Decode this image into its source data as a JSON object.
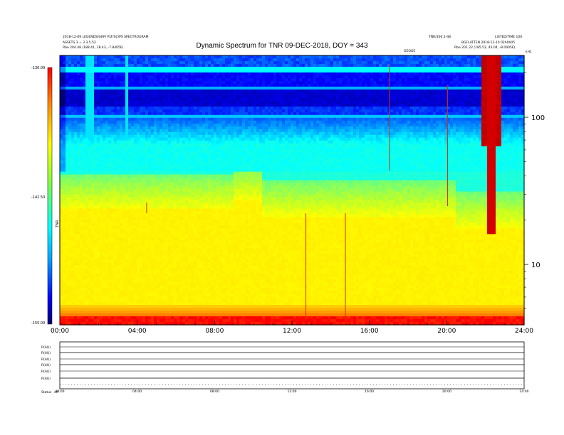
{
  "header": {
    "top_left_1": "2018-12-09 LEGENDS/GRP/ PLT/SC/PS  SPECTROGRAM",
    "top_left_2": "ASSETS 3 = 3.3.5.52",
    "top_left_3": "Rbe 204.48 (188.41, 28.43, -7.8405E)",
    "top_right_1": "TNR/300 2-48",
    "top_right_2": "LISTED/TIME 100",
    "top_right_3": "BGFLATTEN 2018-12-10 02h0h05",
    "top_right_4": "Rbe 201.22 (185.52, 43.04, -8.0405E)",
    "mid_label": "GEOGE",
    "right_edge_label": "kHz"
  },
  "title": "Dynamic Spectrum for TNR 09-DEC-2018, DOY = 343",
  "colorbar": {
    "max_label": "-130.00",
    "mid_label": "-142.50",
    "min_label": "-155.00",
    "unit_label": "TNR"
  },
  "chart_data": {
    "type": "heatmap",
    "title": "Dynamic Spectrum for TNR 09-DEC-2018, DOY = 343",
    "x_ticks": [
      "00:00",
      "04:00",
      "08:00",
      "12:00",
      "16:00",
      "20:00",
      "24:00"
    ],
    "y_ticks": [
      "100",
      "10"
    ],
    "y_scale": "log",
    "color_range": [
      -155,
      -130
    ],
    "colormap": [
      "#00007a",
      "#0000ff",
      "#0090ff",
      "#00ffff",
      "#40ff90",
      "#c0ff00",
      "#ffff00",
      "#ffa000",
      "#ff0000",
      "#c80000"
    ]
  },
  "lower_panel": {
    "left_labels": [
      "R(AU)",
      "R(AU)",
      "R(AU)",
      "R(AU)",
      "R(AU)",
      "R(AU)"
    ],
    "bottom_left_1": "Status",
    "bottom_left_2": "eff",
    "x_ticks": [
      "00:00",
      "04:00",
      "08:00",
      "12:00",
      "16:00",
      "20:00",
      "24:00"
    ]
  }
}
